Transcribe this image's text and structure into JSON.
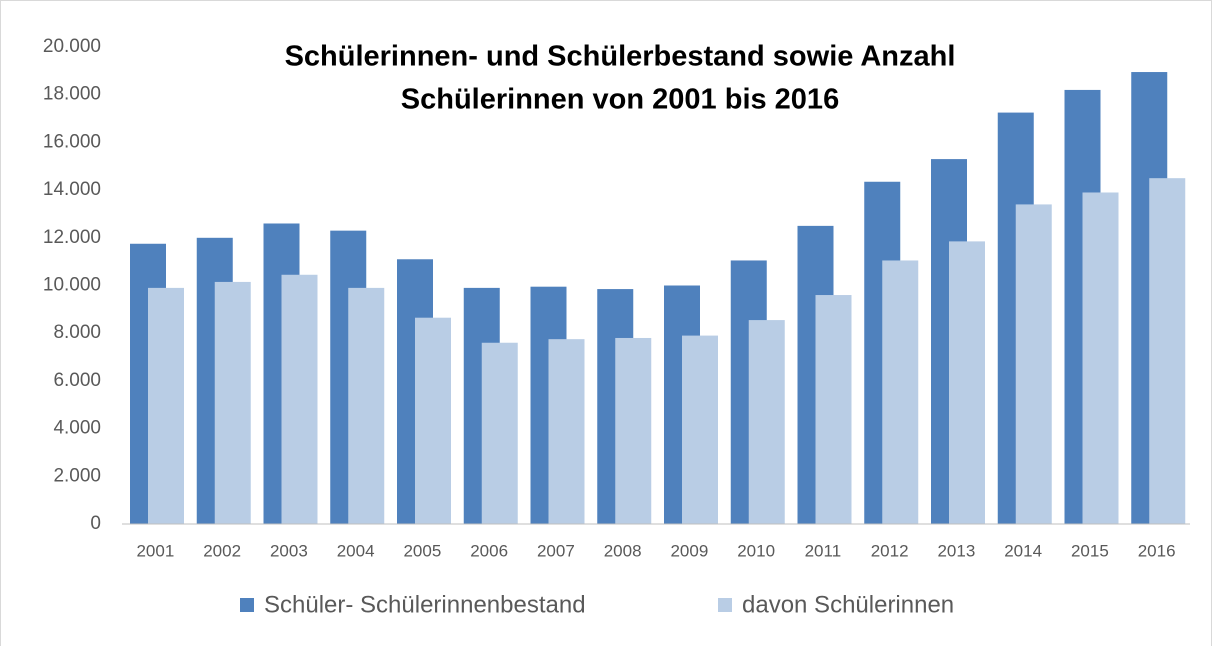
{
  "chart_data": {
    "type": "bar",
    "title": [
      "Schülerinnen- und Schülerbestand sowie Anzahl",
      "Schülerinnen von 2001 bis 2016"
    ],
    "categories": [
      "2001",
      "2002",
      "2003",
      "2004",
      "2005",
      "2006",
      "2007",
      "2008",
      "2009",
      "2010",
      "2011",
      "2012",
      "2013",
      "2014",
      "2015",
      "2016"
    ],
    "series": [
      {
        "name": "Schüler- Schülerinnenbestand",
        "color": "#4f81bd",
        "values": [
          11750,
          12000,
          12600,
          12300,
          11100,
          9900,
          9950,
          9850,
          10000,
          11050,
          12500,
          14350,
          15300,
          17250,
          18200,
          18950
        ]
      },
      {
        "name": "davon Schülerinnen",
        "color": "#b9cde5",
        "values": [
          9900,
          10150,
          10450,
          9900,
          8650,
          7600,
          7750,
          7800,
          7900,
          8550,
          9600,
          11050,
          11850,
          13400,
          13900,
          14500
        ]
      }
    ],
    "ylim": [
      0,
      20000
    ],
    "yticks": [
      0,
      {
        "value": 2000,
        "label": "2.000"
      },
      {
        "value": 4000,
        "label": "4.000"
      },
      {
        "value": 6000,
        "label": "6.000"
      },
      {
        "value": 8000,
        "label": "8.000"
      },
      {
        "value": 10000,
        "label": "10.000"
      },
      {
        "value": 12000,
        "label": "12.000"
      },
      {
        "value": 14000,
        "label": "14.000"
      },
      {
        "value": 16000,
        "label": "16.000"
      },
      {
        "value": 18000,
        "label": "18.000"
      },
      {
        "value": 20000,
        "label": "20.000"
      }
    ],
    "grid": false,
    "legend": "bottom"
  }
}
